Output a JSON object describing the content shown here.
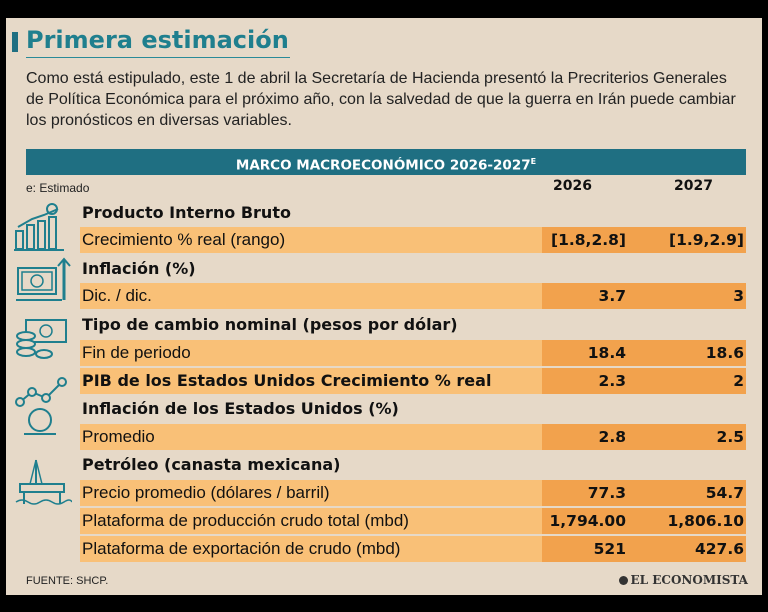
{
  "title": "Primera estimación",
  "intro": "Como está estipulado, este 1 de abril la Secretaría de Hacienda presentó la Precriterios Generales de Política Económica para el próximo año, con la salvedad de que la guerra en Irán puede cambiar los pronósticos en diversas variables.",
  "table": {
    "header": "MARCO MACROECONÓMICO 2026-2027",
    "header_sup": "E",
    "note": "e: Estimado",
    "years": [
      "2026",
      "2027"
    ],
    "rows": [
      {
        "label": "Producto Interno Bruto",
        "bold": true,
        "v2026": "",
        "v2027": ""
      },
      {
        "label": "Crecimiento % real (rango)",
        "bold": false,
        "v2026": "[1.8,2.8]",
        "v2027": "[1.9,2.9]"
      },
      {
        "label": "Inflación (%)",
        "bold": true,
        "v2026": "",
        "v2027": ""
      },
      {
        "label": "Dic. / dic.",
        "bold": false,
        "v2026": "3.7",
        "v2027": "3"
      },
      {
        "label": "Tipo de cambio nominal (pesos por dólar)",
        "bold": true,
        "v2026": "",
        "v2027": ""
      },
      {
        "label": "Fin de periodo",
        "bold": false,
        "v2026": "18.4",
        "v2027": "18.6"
      },
      {
        "label": "PIB de los Estados Unidos Crecimiento % real",
        "bold": true,
        "v2026": "2.3",
        "v2027": "2"
      },
      {
        "label": "Inflación de los Estados Unidos (%)",
        "bold": true,
        "v2026": "",
        "v2027": ""
      },
      {
        "label": "Promedio",
        "bold": false,
        "v2026": "2.8",
        "v2027": "2.5"
      },
      {
        "label": "Petróleo (canasta mexicana)",
        "bold": true,
        "v2026": "",
        "v2027": ""
      },
      {
        "label": "Precio promedio (dólares / barril)",
        "bold": false,
        "v2026": "77.3",
        "v2027": "54.7"
      },
      {
        "label": "Plataforma de producción crudo total (mbd)",
        "bold": false,
        "v2026": "1,794.00",
        "v2027": "1,806.10"
      },
      {
        "label": "Plataforma de exportación de crudo (mbd)",
        "bold": false,
        "v2026": "521",
        "v2027": "427.6"
      }
    ]
  },
  "footer": "FUENTE: SHCP.",
  "brand": "EL ECONOMISTA",
  "colors": {
    "teal": "#1f6f82",
    "row_highlight": "#f9c077",
    "value_cell": "#f2a24d",
    "background": "#e6d9c8"
  },
  "icons": [
    "growth-chart-icon",
    "banknote-inflation-icon",
    "coins-banknote-icon",
    "network-dollar-icon",
    "oil-platform-icon"
  ]
}
